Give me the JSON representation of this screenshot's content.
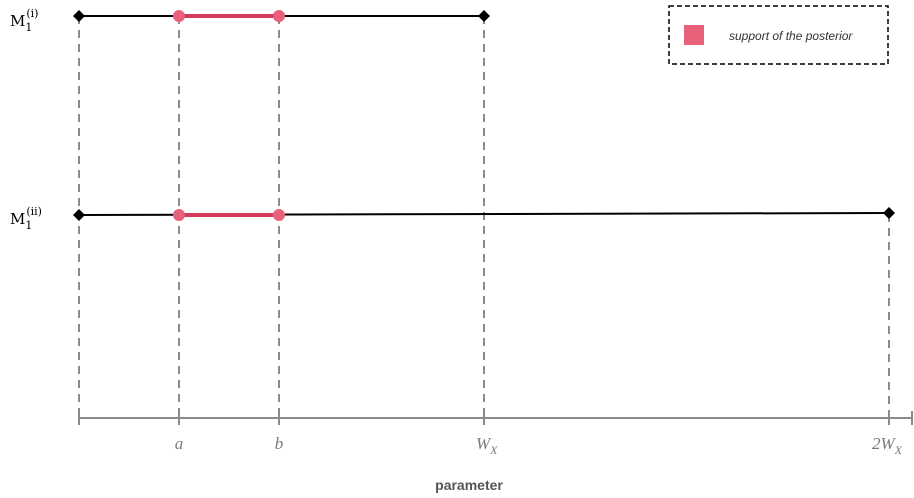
{
  "legend": {
    "label": "support of the posterior",
    "swatch_color": "#e8607a"
  },
  "rows": [
    {
      "label_base": "M",
      "label_sub": "1",
      "label_sup": "(i)"
    },
    {
      "label_base": "M",
      "label_sub": "1",
      "label_sup": "(ii)"
    }
  ],
  "axis": {
    "title": "parameter",
    "ticks": [
      {
        "base": "a",
        "sub": ""
      },
      {
        "base": "b",
        "sub": ""
      },
      {
        "base": "W",
        "sub": "X"
      },
      {
        "base": "2W",
        "sub": "X"
      }
    ]
  },
  "colors": {
    "line": "#000000",
    "highlight": "#d33b5c",
    "point": "#e8607a",
    "guide": "#8a8a8a",
    "axis": "#8a8a8a",
    "tick_text": "#7a7a7a",
    "title_text": "#555555"
  }
}
